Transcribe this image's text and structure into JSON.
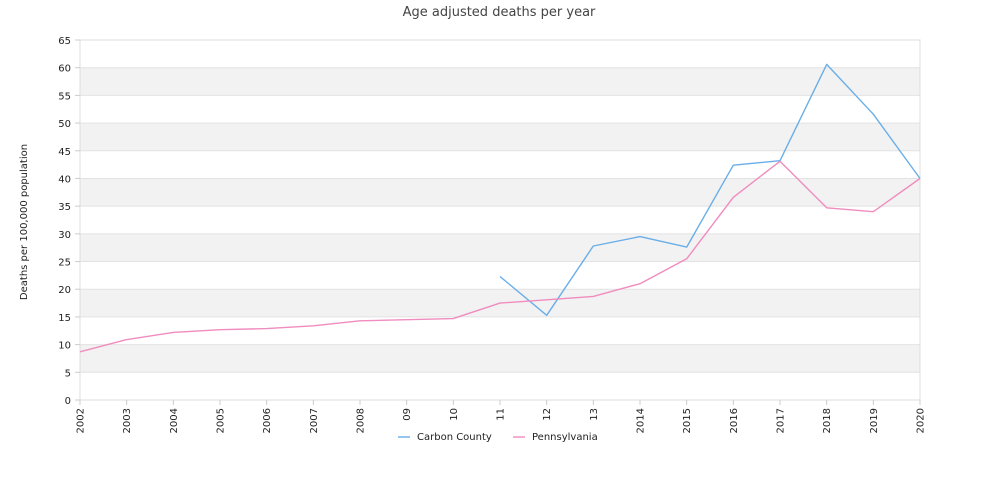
{
  "chart_data": {
    "type": "line",
    "title": "Age adjusted deaths per year",
    "xlabel": "",
    "ylabel": "Deaths per 100,000 population",
    "categories": [
      "2002",
      "2003",
      "2004",
      "2005",
      "2006",
      "2007",
      "2008",
      "09",
      "10",
      "11",
      "12",
      "13",
      "2014",
      "2015",
      "2016",
      "2017",
      "2018",
      "2019",
      "2020"
    ],
    "ylim": [
      0,
      65
    ],
    "yticks": [
      0,
      5,
      10,
      15,
      20,
      25,
      30,
      35,
      40,
      45,
      50,
      55,
      60,
      65
    ],
    "grid": "alternating horizontal bands",
    "legend_position": "bottom",
    "series": [
      {
        "name": "Carbon County",
        "color": "#6aaee8",
        "values": [
          null,
          null,
          null,
          null,
          null,
          null,
          null,
          null,
          null,
          22.3,
          15.3,
          27.8,
          29.5,
          27.6,
          42.4,
          43.2,
          60.6,
          51.6,
          40.0
        ]
      },
      {
        "name": "Pennsylvania",
        "color": "#f08cbf",
        "values": [
          8.7,
          10.9,
          12.2,
          12.7,
          12.9,
          13.4,
          14.3,
          14.5,
          14.7,
          17.5,
          18.1,
          18.7,
          21.0,
          25.5,
          36.6,
          43.1,
          34.7,
          34.0,
          40.0
        ]
      }
    ]
  }
}
